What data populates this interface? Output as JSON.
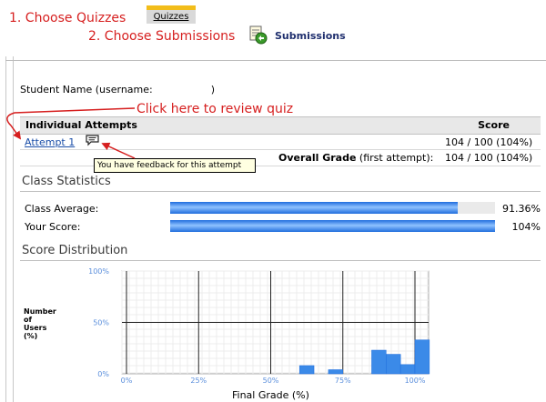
{
  "annotations": {
    "step1": "1. Choose Quizzes",
    "step2": "2. Choose Submissions",
    "review": "Click here to review quiz"
  },
  "nav": {
    "quizzes_tab": "Quizzes",
    "submissions_label": "Submissions",
    "submissions_icon": "submissions-icon"
  },
  "student": {
    "label": "Student Name (username:",
    "close_paren": ")"
  },
  "attempts": {
    "header_left": "Individual Attempts",
    "header_right": "Score",
    "attempt_link": "Attempt 1",
    "attempt_score": "104 / 100 (104%)",
    "feedback_icon": "feedback-speech-bubble-icon",
    "tooltip": "You have feedback for this attempt",
    "overall_bold": "Overall Grade",
    "overall_rest": "(first attempt):",
    "overall_score": "104 / 100 (104%)"
  },
  "class_statistics": {
    "title": "Class Statistics",
    "rows": [
      {
        "label": "Class Average:",
        "value_text": "91.36%",
        "fill_fraction": 0.886
      },
      {
        "label": "Your Score:",
        "value_text": "104%",
        "fill_fraction": 1.0
      }
    ]
  },
  "score_distribution": {
    "title": "Score Distribution",
    "ylabel_lines": [
      "Number",
      "of",
      "Users",
      "(%)"
    ],
    "xlabel": "Final Grade (%)"
  },
  "chart_data": {
    "type": "bar",
    "xlabel": "Final Grade (%)",
    "ylabel": "Number of Users (%)",
    "xlim": [
      0,
      100
    ],
    "ylim": [
      0,
      100
    ],
    "x_ticks": [
      "0%",
      "25%",
      "50%",
      "75%",
      "100%"
    ],
    "y_ticks": [
      "0%",
      "50%",
      "100%"
    ],
    "grid": true,
    "bins": [
      {
        "x_start": 60,
        "x_end": 65,
        "value": 8
      },
      {
        "x_start": 70,
        "x_end": 75,
        "value": 4
      },
      {
        "x_start": 85,
        "x_end": 90,
        "value": 23
      },
      {
        "x_start": 90,
        "x_end": 95,
        "value": 19
      },
      {
        "x_start": 95,
        "x_end": 100,
        "value": 9
      },
      {
        "x_start": 100,
        "x_end": 105,
        "value": 33
      }
    ]
  },
  "colors": {
    "annotation_red": "#d61f1f",
    "link_blue": "#1a4ea8",
    "bar_blue": "#1f6ddd",
    "tab_gold": "#f2bd1a"
  }
}
